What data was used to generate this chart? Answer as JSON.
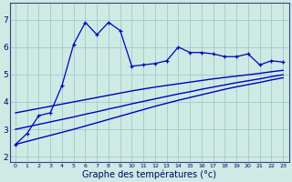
{
  "background_color": "#ceeae4",
  "grid_color": "#aacccc",
  "line_color": "#0000bb",
  "xlabel": "Graphe des températures (°c)",
  "xlabel_fontsize": 7,
  "ylabel_ticks": [
    2,
    3,
    4,
    5,
    6,
    7
  ],
  "xlim": [
    -0.5,
    23.5
  ],
  "ylim": [
    1.8,
    7.6
  ],
  "xtick_labels": [
    "0",
    "1",
    "2",
    "3",
    "4",
    "5",
    "6",
    "7",
    "8",
    "9",
    "10",
    "11",
    "12",
    "13",
    "14",
    "15",
    "16",
    "17",
    "18",
    "19",
    "20",
    "21",
    "22",
    "23"
  ],
  "series1_x": [
    0,
    1,
    2,
    3,
    4,
    5,
    6,
    7,
    8,
    9,
    10,
    11,
    12,
    13,
    14,
    15,
    16,
    17,
    18,
    19,
    20,
    21,
    22,
    23
  ],
  "series1_y": [
    2.45,
    2.85,
    3.5,
    3.6,
    4.6,
    6.1,
    6.9,
    6.45,
    6.9,
    6.6,
    5.3,
    5.35,
    5.4,
    5.5,
    6.0,
    5.8,
    5.8,
    5.75,
    5.65,
    5.65,
    5.75,
    5.35,
    5.5,
    5.45
  ],
  "series2_x": [
    0,
    1,
    2,
    3,
    4,
    5,
    6,
    7,
    8,
    9,
    10,
    11,
    12,
    13,
    14,
    15,
    16,
    17,
    18,
    19,
    20,
    21,
    22,
    23
  ],
  "series2_y": [
    3.6,
    3.68,
    3.76,
    3.84,
    3.92,
    4.0,
    4.08,
    4.16,
    4.24,
    4.32,
    4.4,
    4.47,
    4.54,
    4.6,
    4.66,
    4.72,
    4.78,
    4.84,
    4.89,
    4.94,
    4.99,
    5.04,
    5.1,
    5.15
  ],
  "series3_x": [
    0,
    1,
    2,
    3,
    4,
    5,
    6,
    7,
    8,
    9,
    10,
    11,
    12,
    13,
    14,
    15,
    16,
    17,
    18,
    19,
    20,
    21,
    22,
    23
  ],
  "series3_y": [
    3.0,
    3.09,
    3.18,
    3.27,
    3.36,
    3.45,
    3.55,
    3.64,
    3.74,
    3.83,
    3.93,
    4.02,
    4.11,
    4.2,
    4.29,
    4.37,
    4.46,
    4.54,
    4.62,
    4.7,
    4.77,
    4.84,
    4.92,
    4.99
  ],
  "series4_x": [
    0,
    1,
    2,
    3,
    4,
    5,
    6,
    7,
    8,
    9,
    10,
    11,
    12,
    13,
    14,
    15,
    16,
    17,
    18,
    19,
    20,
    21,
    22,
    23
  ],
  "series4_y": [
    2.45,
    2.56,
    2.67,
    2.78,
    2.89,
    3.0,
    3.12,
    3.24,
    3.36,
    3.48,
    3.6,
    3.72,
    3.84,
    3.95,
    4.06,
    4.16,
    4.26,
    4.36,
    4.46,
    4.55,
    4.63,
    4.71,
    4.8,
    4.88
  ]
}
